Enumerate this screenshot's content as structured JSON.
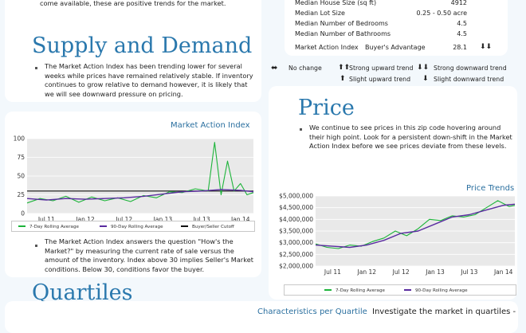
{
  "intro": {
    "text_tail": "come available, these are positive trends for the market."
  },
  "supply": {
    "title": "Supply and Demand",
    "paragraph": "The Market Action Index has been trending lower for several weeks while prices have remained relatively stable. If inventory continues to grow relative to demand however, it is likely that we will see downward pressure on pricing."
  },
  "stats": {
    "rows": [
      {
        "label": "Median House Size (sq ft)",
        "value": "4912"
      },
      {
        "label": "Median Lot Size",
        "value": "0.25 - 0.50 acre"
      },
      {
        "label": "Median Number of Bedrooms",
        "value": "4.5"
      },
      {
        "label": "Median Number of Bathrooms",
        "value": "4.5"
      }
    ],
    "mai_label": "Market Action Index",
    "mai_type": "Buyer's Advantage",
    "mai_value": "28.1",
    "mai_arrows": "⬇⬇"
  },
  "trend_key": {
    "no_change": "No change",
    "strong_up": "Strong upward trend",
    "strong_down": "Strong downward trend",
    "slight_up": "Slight upward trend",
    "slight_down": "Slight downward trend",
    "icons": {
      "no_change": "⬌",
      "strong_up": "⬆⬆",
      "strong_down": "⬇⬇",
      "slight_up": "⬆",
      "slight_down": "⬇"
    }
  },
  "price": {
    "title": "Price",
    "paragraph": "We continue to see prices in this zip code hovering around their high point. Look for a persistent down-shift in the Market Action Index before we see prices deviate from these levels."
  },
  "mai_desc": {
    "paragraph": "The Market Action Index answers the question \"How's the Market?\" by measuring the current rate of sale versus the amount of the inventory.  Index above 30 implies Seller's Market conditions. Below 30, conditions favor the buyer."
  },
  "quartiles": {
    "title": "Quartiles",
    "subtitle": "Characteristics per Quartile",
    "investigate": "Investigate the market in quartiles -"
  },
  "colors": {
    "accent": "#2a78ad",
    "green": "#1db43a",
    "purple": "#5a2ca0"
  },
  "chart_data": [
    {
      "type": "line",
      "title": "Market Action Index",
      "x_ticks": [
        "Jul 11",
        "Jan 12",
        "Jul 12",
        "Jan 13",
        "Jul 13",
        "Jan 14"
      ],
      "ylim": [
        0,
        100
      ],
      "y_ticks": [
        0,
        25,
        50,
        75,
        100
      ],
      "legend": [
        "7-Day Rolling Average",
        "90-Day Rolling Average",
        "Buyer/Seller Cutoff"
      ],
      "cutoff": 30,
      "x_range": [
        "2011-04",
        "2014-03"
      ],
      "series": [
        {
          "name": "7-Day Rolling Average",
          "x": [
            "2011-04",
            "2011-06",
            "2011-08",
            "2011-10",
            "2011-12",
            "2012-02",
            "2012-04",
            "2012-06",
            "2012-08",
            "2012-10",
            "2012-12",
            "2013-02",
            "2013-04",
            "2013-06",
            "2013-08",
            "2013-09",
            "2013-10",
            "2013-11",
            "2013-12",
            "2014-01",
            "2014-02",
            "2014-03"
          ],
          "values": [
            14,
            20,
            17,
            23,
            15,
            22,
            17,
            21,
            16,
            24,
            21,
            29,
            28,
            33,
            30,
            95,
            25,
            70,
            30,
            40,
            25,
            28
          ]
        },
        {
          "name": "90-Day Rolling Average",
          "x": [
            "2011-04",
            "2011-07",
            "2011-10",
            "2012-01",
            "2012-04",
            "2012-07",
            "2012-10",
            "2013-01",
            "2013-04",
            "2013-07",
            "2013-10",
            "2014-01",
            "2014-03"
          ],
          "values": [
            20,
            18,
            20,
            19,
            20,
            21,
            23,
            26,
            29,
            30,
            32,
            31,
            29
          ]
        }
      ]
    },
    {
      "type": "line",
      "title": "Price Trends",
      "x_ticks": [
        "Jul 11",
        "Jan 12",
        "Jul 12",
        "Jan 13",
        "Jul 13",
        "Jan 14"
      ],
      "ylim": [
        2000000,
        5000000
      ],
      "y_ticks": [
        "$2,000,000",
        "$2,500,000",
        "$3,000,000",
        "$3,500,000",
        "$4,000,000",
        "$4,500,000",
        "$5,000,000"
      ],
      "legend": [
        "7-Day Rolling Average",
        "90-Day Rolling Average"
      ],
      "x_range": [
        "2011-04",
        "2014-03"
      ],
      "series": [
        {
          "name": "7-Day Rolling Average",
          "x": [
            "2011-04",
            "2011-06",
            "2011-08",
            "2011-10",
            "2011-12",
            "2012-02",
            "2012-04",
            "2012-06",
            "2012-08",
            "2012-10",
            "2012-12",
            "2013-02",
            "2013-04",
            "2013-06",
            "2013-08",
            "2013-10",
            "2013-12",
            "2014-02",
            "2014-03"
          ],
          "values": [
            2950000,
            2800000,
            2750000,
            2900000,
            2850000,
            3050000,
            3200000,
            3500000,
            3300000,
            3600000,
            4000000,
            3950000,
            4150000,
            4100000,
            4200000,
            4500000,
            4800000,
            4550000,
            4600000
          ]
        },
        {
          "name": "90-Day Rolling Average",
          "x": [
            "2011-04",
            "2011-07",
            "2011-10",
            "2012-01",
            "2012-04",
            "2012-07",
            "2012-10",
            "2013-01",
            "2013-04",
            "2013-07",
            "2013-10",
            "2014-01",
            "2014-03"
          ],
          "values": [
            2900000,
            2850000,
            2800000,
            2900000,
            3100000,
            3400000,
            3500000,
            3800000,
            4100000,
            4200000,
            4400000,
            4600000,
            4650000
          ]
        }
      ]
    }
  ]
}
